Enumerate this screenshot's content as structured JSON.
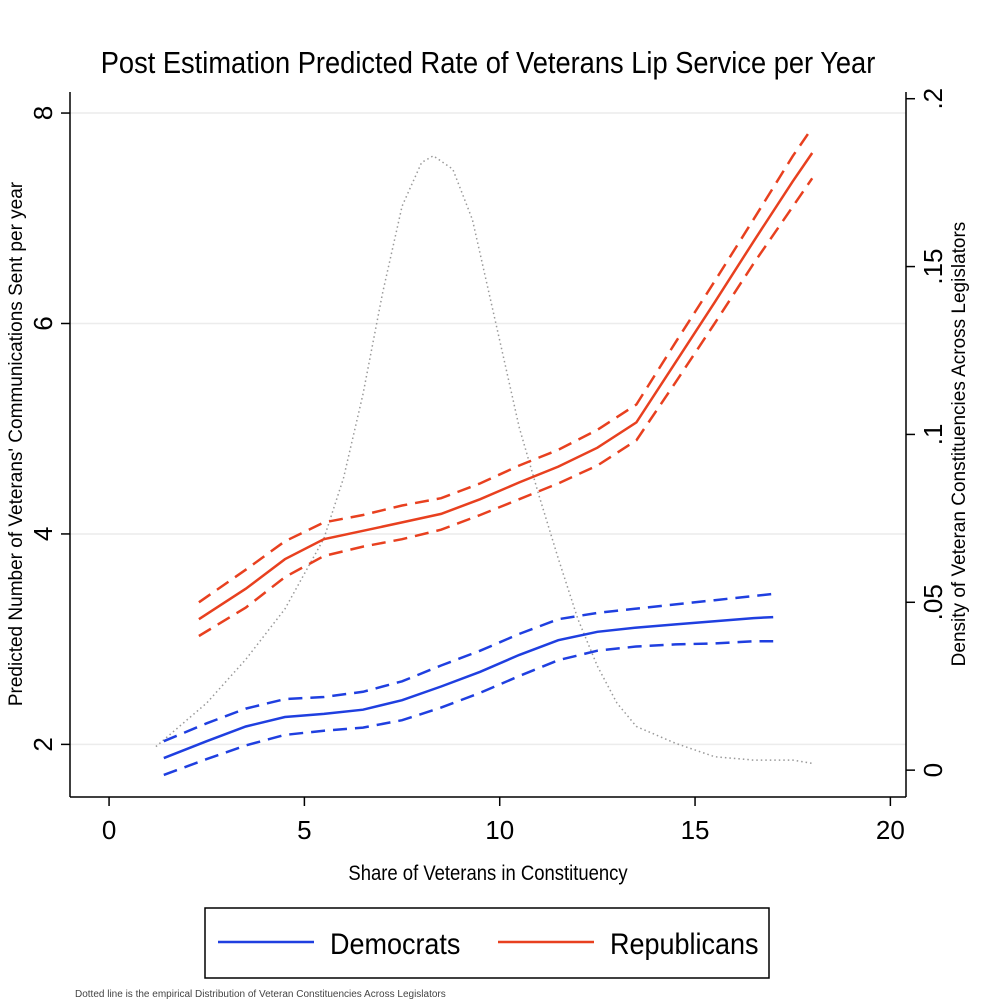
{
  "chart_data": {
    "type": "line",
    "title": "Post Estimation Predicted Rate of Veterans Lip Service per Year",
    "xlabel": "Share of Veterans in Constituency",
    "ylabel": "Predicted Number of Veterans' Communications Sent per year",
    "ylabel_right": "Density of Veteran Constituencies Across Legislators",
    "xlim": [
      -1,
      20.4
    ],
    "ylim": [
      1.5,
      8.2
    ],
    "ylim_right": [
      -0.008,
      0.202
    ],
    "x_ticks": [
      0,
      5,
      10,
      15,
      20
    ],
    "x_tick_labels": [
      "0",
      "5",
      "10",
      "15",
      "20"
    ],
    "y_ticks": [
      2,
      4,
      6,
      8
    ],
    "y_tick_labels": [
      "2",
      "4",
      "6",
      "8"
    ],
    "y_right_ticks": [
      0,
      0.05,
      0.1,
      0.15,
      0.2
    ],
    "y_right_tick_labels": [
      "0",
      ".05",
      ".1",
      ".15",
      ".2"
    ],
    "grid": true,
    "legend_position": "bottom",
    "series": [
      {
        "name": "Democrats",
        "color": "#1f3fe0",
        "axis": "left",
        "x": [
          1.4,
          2.5,
          3.5,
          4.5,
          5.5,
          6.5,
          7.5,
          8.5,
          9.5,
          10.5,
          11.5,
          12.5,
          13.5,
          14.5,
          15.5,
          16.5,
          17
        ],
        "y": [
          1.87,
          2.03,
          2.17,
          2.26,
          2.29,
          2.33,
          2.42,
          2.55,
          2.69,
          2.85,
          2.99,
          3.07,
          3.11,
          3.14,
          3.17,
          3.2,
          3.21
        ],
        "lower": [
          1.71,
          1.86,
          1.99,
          2.09,
          2.13,
          2.16,
          2.23,
          2.35,
          2.49,
          2.65,
          2.8,
          2.89,
          2.93,
          2.95,
          2.96,
          2.98,
          2.98
        ],
        "upper": [
          2.03,
          2.2,
          2.34,
          2.43,
          2.45,
          2.5,
          2.6,
          2.75,
          2.89,
          3.05,
          3.19,
          3.25,
          3.29,
          3.33,
          3.37,
          3.41,
          3.43
        ]
      },
      {
        "name": "Republicans",
        "color": "#e8401f",
        "axis": "left",
        "x": [
          2.3,
          3.5,
          4.5,
          5.5,
          6.5,
          7.5,
          8.5,
          9.5,
          10.5,
          11.5,
          12.5,
          13.5,
          14.5,
          15.5,
          16.5,
          17.5,
          18
        ],
        "y": [
          3.19,
          3.48,
          3.76,
          3.95,
          4.03,
          4.11,
          4.19,
          4.33,
          4.49,
          4.64,
          4.82,
          5.06,
          5.63,
          6.2,
          6.78,
          7.35,
          7.62
        ],
        "lower": [
          3.03,
          3.3,
          3.59,
          3.79,
          3.88,
          3.95,
          4.04,
          4.18,
          4.33,
          4.48,
          4.65,
          4.89,
          5.44,
          6.0,
          6.57,
          7.11,
          7.38
        ],
        "upper": [
          3.35,
          3.66,
          3.93,
          4.11,
          4.18,
          4.27,
          4.34,
          4.48,
          4.65,
          4.8,
          4.99,
          5.23,
          5.82,
          6.4,
          6.99,
          7.59,
          7.86
        ]
      },
      {
        "name": "Density of veteran constituencies",
        "color": "#999999",
        "axis": "right",
        "style": "dotted",
        "x": [
          1.2,
          2.5,
          3.5,
          4.5,
          5.5,
          6.0,
          6.5,
          7.0,
          7.5,
          8.0,
          8.3,
          8.8,
          9.3,
          10,
          10.5,
          11,
          11.5,
          12,
          12.5,
          13,
          13.5,
          14.5,
          15.5,
          16.5,
          17.5,
          18
        ],
        "y": [
          0.007,
          0.02,
          0.033,
          0.048,
          0.069,
          0.087,
          0.112,
          0.142,
          0.168,
          0.181,
          0.183,
          0.179,
          0.164,
          0.128,
          0.102,
          0.082,
          0.063,
          0.045,
          0.031,
          0.02,
          0.013,
          0.008,
          0.004,
          0.003,
          0.003,
          0.002
        ]
      }
    ]
  },
  "legend": {
    "items": [
      {
        "label": "Democrats",
        "color": "#1f3fe0"
      },
      {
        "label": "Republicans",
        "color": "#e8401f"
      }
    ]
  },
  "footnote": "Dotted line is the empirical Distribution of Veteran Constituencies Across Legislators"
}
